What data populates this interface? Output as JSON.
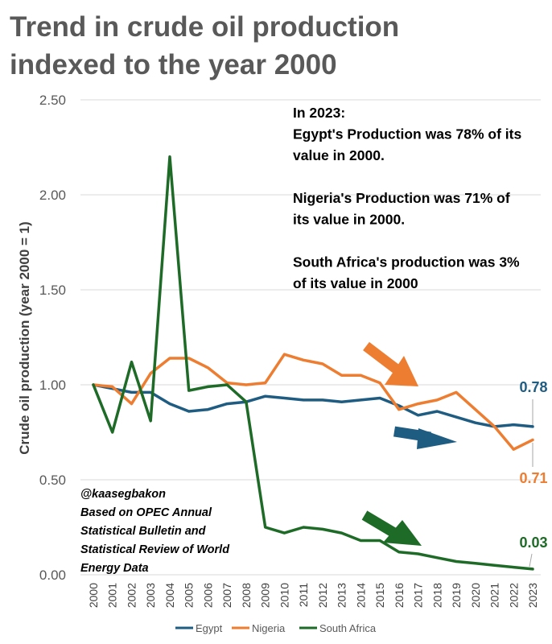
{
  "title_lines": [
    "Trend in crude oil production",
    "indexed to the year 2000"
  ],
  "annotation_lines": [
    "In 2023:",
    "Egypt's Production was 78% of its",
    "value in 2000.",
    "",
    "Nigeria's Production was 71% of",
    "its value in 2000.",
    "",
    "South Africa's production was 3%",
    "of its value in 2000"
  ],
  "source_lines": [
    "@kaasegbakon",
    "Based on OPEC Annual",
    "Statistical Bulletin and",
    "Statistical Review of World",
    "Energy Data"
  ],
  "end_labels": {
    "egypt": "0.78",
    "nigeria": "0.71",
    "south_africa": "0.03"
  },
  "colors": {
    "egypt": "#1F5C82",
    "nigeria": "#ED7D31",
    "south_africa": "#1E6B27",
    "grid": "#D9D9D9"
  },
  "chart_data": {
    "type": "line",
    "title": "Trend in crude oil production indexed to the year 2000",
    "xlabel": "",
    "ylabel": "Crude oil production (year 2000 = 1)",
    "ylim": [
      0,
      2.5
    ],
    "yticks": [
      "0.00",
      "0.50",
      "1.00",
      "1.50",
      "2.00",
      "2.50"
    ],
    "x": [
      "2000",
      "2001",
      "2002",
      "2003",
      "2004",
      "2005",
      "2006",
      "2007",
      "2008",
      "2009",
      "2010",
      "2011",
      "2012",
      "2013",
      "2014",
      "2015",
      "2016",
      "2017",
      "2018",
      "2019",
      "2020",
      "2021",
      "2022",
      "2023"
    ],
    "series": [
      {
        "key": "egypt",
        "name": "Egypt",
        "values": [
          1.0,
          0.98,
          0.96,
          0.96,
          0.9,
          0.86,
          0.87,
          0.9,
          0.91,
          0.94,
          0.93,
          0.92,
          0.92,
          0.91,
          0.92,
          0.93,
          0.89,
          0.84,
          0.86,
          0.83,
          0.8,
          0.78,
          0.79,
          0.78
        ]
      },
      {
        "key": "nigeria",
        "name": "Nigeria",
        "values": [
          1.0,
          0.99,
          0.9,
          1.06,
          1.14,
          1.14,
          1.09,
          1.01,
          1.0,
          1.01,
          1.16,
          1.13,
          1.11,
          1.05,
          1.05,
          1.01,
          0.87,
          0.9,
          0.92,
          0.96,
          0.87,
          0.78,
          0.66,
          0.71
        ]
      },
      {
        "key": "south_africa",
        "name": "South Africa",
        "values": [
          1.0,
          0.75,
          1.12,
          0.81,
          2.2,
          0.97,
          0.99,
          1.0,
          0.91,
          0.25,
          0.22,
          0.25,
          0.24,
          0.22,
          0.18,
          0.18,
          0.12,
          0.11,
          0.09,
          0.07,
          0.06,
          0.05,
          0.04,
          0.03
        ]
      }
    ],
    "legend": [
      "Egypt",
      "Nigeria",
      "South Africa"
    ],
    "legend_position": "bottom"
  }
}
